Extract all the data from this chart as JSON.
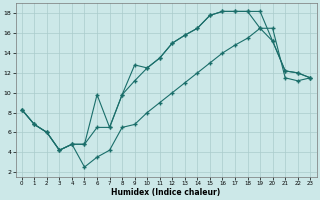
{
  "xlabel": "Humidex (Indice chaleur)",
  "bg_color": "#cce8e8",
  "line_color": "#1a6e6a",
  "grid_color": "#aacccc",
  "xlim": [
    -0.5,
    23.5
  ],
  "ylim": [
    1.5,
    19
  ],
  "xticks": [
    0,
    1,
    2,
    3,
    4,
    5,
    6,
    7,
    8,
    9,
    10,
    11,
    12,
    13,
    14,
    15,
    16,
    17,
    18,
    19,
    20,
    21,
    22,
    23
  ],
  "yticks": [
    2,
    4,
    6,
    8,
    10,
    12,
    14,
    16,
    18
  ],
  "line1_x": [
    0,
    1,
    2,
    3,
    4,
    5,
    6,
    7,
    8,
    9,
    10,
    11,
    12,
    13,
    14,
    15,
    16,
    17,
    18,
    19,
    20,
    21,
    22,
    23
  ],
  "line1_y": [
    8.3,
    6.8,
    6.0,
    4.2,
    4.8,
    4.8,
    9.8,
    6.5,
    9.8,
    12.8,
    12.5,
    13.5,
    15.0,
    15.8,
    16.5,
    17.8,
    18.2,
    18.2,
    18.2,
    18.2,
    15.2,
    12.2,
    12.0,
    11.5
  ],
  "line2_x": [
    0,
    1,
    2,
    3,
    4,
    5,
    6,
    7,
    8,
    9,
    10,
    11,
    12,
    13,
    14,
    15,
    16,
    17,
    18,
    19,
    20,
    21,
    22,
    23
  ],
  "line2_y": [
    8.3,
    6.8,
    6.0,
    4.2,
    4.8,
    4.8,
    6.5,
    6.5,
    9.8,
    11.2,
    12.5,
    13.5,
    15.0,
    15.8,
    16.5,
    17.8,
    18.2,
    18.2,
    18.2,
    16.5,
    15.2,
    12.2,
    12.0,
    11.5
  ],
  "line3_x": [
    0,
    1,
    2,
    3,
    4,
    5,
    6,
    7,
    8,
    9,
    10,
    11,
    12,
    13,
    14,
    15,
    16,
    17,
    18,
    19,
    20,
    21,
    22,
    23
  ],
  "line3_y": [
    8.3,
    6.8,
    6.0,
    4.2,
    4.8,
    2.5,
    3.5,
    4.2,
    6.5,
    6.8,
    8.0,
    9.0,
    10.0,
    11.0,
    12.0,
    13.0,
    14.0,
    14.8,
    15.5,
    16.5,
    16.5,
    11.5,
    11.2,
    11.5
  ]
}
